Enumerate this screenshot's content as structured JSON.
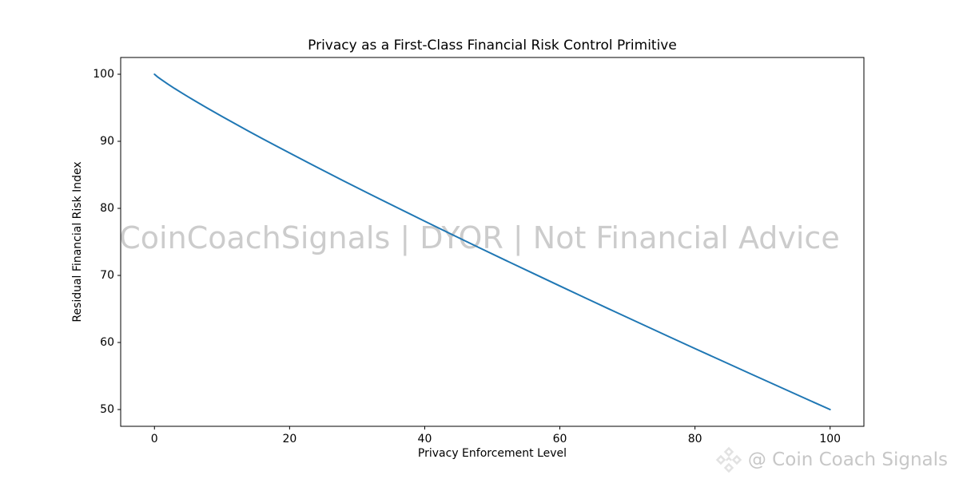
{
  "figure": {
    "watermark": "CoinCoachSignals | DYOR | Not Financial Advice",
    "footer": {
      "text": "@ Coin Coach Signals"
    }
  },
  "chart_data": {
    "type": "line",
    "title": "Privacy as a First-Class Financial Risk Control Primitive",
    "xlabel": "Privacy Enforcement Level",
    "ylabel": "Residual Financial Risk Index",
    "xlim": [
      -5,
      105
    ],
    "ylim": [
      47.5,
      102.5
    ],
    "xticks": [
      0,
      20,
      40,
      60,
      80,
      100
    ],
    "yticks": [
      50,
      60,
      70,
      80,
      90,
      100
    ],
    "grid": false,
    "legend_position": "none",
    "series": [
      {
        "name": "Residual Financial Risk Index",
        "color": "#1f77b4",
        "points": [
          [
            0,
            100
          ],
          [
            0.5,
            99.57
          ],
          [
            1,
            99.21
          ],
          [
            2,
            98.52
          ],
          [
            3,
            97.87
          ],
          [
            4,
            97.24
          ],
          [
            5,
            96.63
          ],
          [
            6,
            96.02
          ],
          [
            8,
            94.85
          ],
          [
            10,
            93.7
          ],
          [
            12,
            92.58
          ],
          [
            14,
            91.48
          ],
          [
            16,
            90.39
          ],
          [
            18,
            89.32
          ],
          [
            20,
            88.26
          ],
          [
            24,
            86.16
          ],
          [
            28,
            84.1
          ],
          [
            32,
            82.07
          ],
          [
            36,
            80.07
          ],
          [
            40,
            78.08
          ],
          [
            44,
            76.12
          ],
          [
            48,
            74.17
          ],
          [
            52,
            72.24
          ],
          [
            56,
            70.33
          ],
          [
            60,
            68.43
          ],
          [
            64,
            66.54
          ],
          [
            68,
            64.66
          ],
          [
            72,
            62.8
          ],
          [
            76,
            60.94
          ],
          [
            80,
            59.1
          ],
          [
            84,
            57.26
          ],
          [
            88,
            55.43
          ],
          [
            92,
            53.62
          ],
          [
            96,
            51.8
          ],
          [
            100,
            50
          ]
        ]
      }
    ]
  },
  "colors": {
    "background": "#ffffff",
    "axis": "#000000",
    "line": "#1f77b4",
    "watermark": "#cccccc",
    "footer_text": "#c7c7c7",
    "footer_icon": "#e2e2e2"
  }
}
